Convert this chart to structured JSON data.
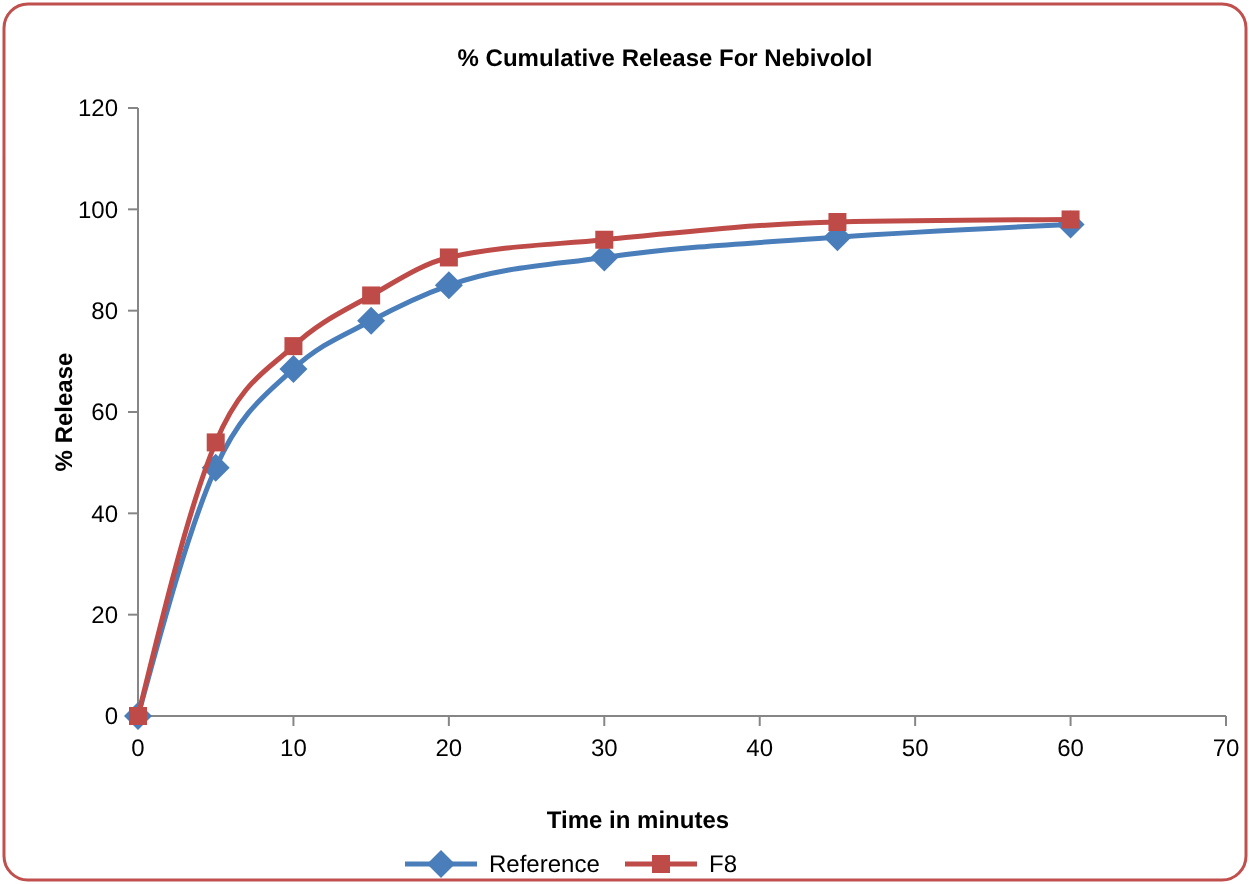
{
  "chart_data": {
    "type": "line",
    "title": "% Cumulative Release For Nebivolol",
    "xlabel": "Time in minutes",
    "ylabel": "% Release",
    "x": [
      0,
      5,
      10,
      15,
      20,
      30,
      45,
      60
    ],
    "series": [
      {
        "name": "Reference",
        "color": "#4a7ebb",
        "marker": "diamond",
        "values": [
          0,
          49,
          68.5,
          78,
          85,
          90.5,
          94.5,
          97
        ]
      },
      {
        "name": "F8",
        "color": "#be4b48",
        "marker": "square",
        "values": [
          0,
          54,
          73,
          83,
          90.5,
          94,
          97.5,
          98
        ]
      }
    ],
    "xlim": [
      0,
      70
    ],
    "xticks": [
      0,
      10,
      20,
      30,
      40,
      50,
      60,
      70
    ],
    "ylim": [
      0,
      120
    ],
    "yticks": [
      0,
      20,
      40,
      60,
      80,
      100,
      120
    ],
    "grid": false,
    "legend": "bottom",
    "line_style": "solid"
  }
}
